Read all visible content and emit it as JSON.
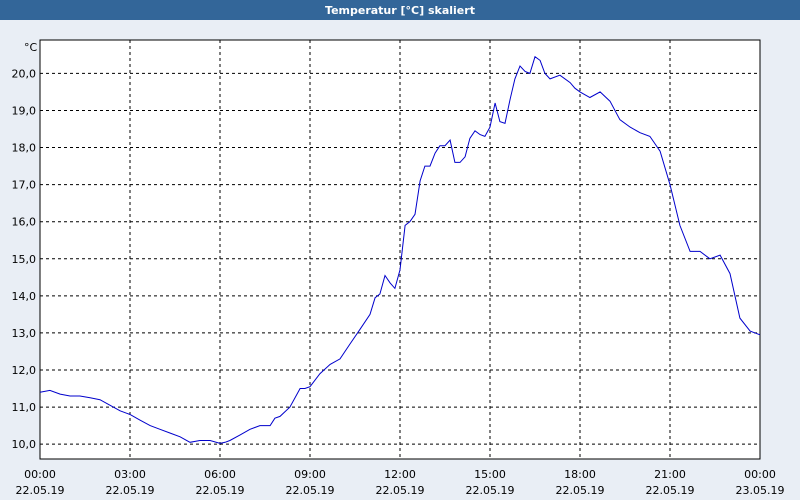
{
  "window": {
    "title": "Temperatur [°C] skaliert"
  },
  "chart_data": {
    "type": "line",
    "title": "Temperatur [°C] skaliert",
    "ylabel": "°C",
    "xlabel": "",
    "ylim": [
      9.6,
      20.9
    ],
    "xlim": [
      0,
      24
    ],
    "grid": true,
    "line_color": "#0000cc",
    "background": "#ffffff",
    "y_ticks": [
      10.0,
      11.0,
      12.0,
      13.0,
      14.0,
      15.0,
      16.0,
      17.0,
      18.0,
      19.0,
      20.0
    ],
    "y_tick_labels": [
      "10,0",
      "11,0",
      "12,0",
      "13,0",
      "14,0",
      "15,0",
      "16,0",
      "17,0",
      "18,0",
      "19,0",
      "20,0"
    ],
    "x_ticks": [
      0,
      3,
      6,
      9,
      12,
      15,
      18,
      21,
      24
    ],
    "x_tick_labels": [
      {
        "time": "00:00",
        "date": "22.05.19"
      },
      {
        "time": "03:00",
        "date": "22.05.19"
      },
      {
        "time": "06:00",
        "date": "22.05.19"
      },
      {
        "time": "09:00",
        "date": "22.05.19"
      },
      {
        "time": "12:00",
        "date": "22.05.19"
      },
      {
        "time": "15:00",
        "date": "22.05.19"
      },
      {
        "time": "18:00",
        "date": "22.05.19"
      },
      {
        "time": "21:00",
        "date": "22.05.19"
      },
      {
        "time": "00:00",
        "date": "23.05.19"
      }
    ],
    "series": [
      {
        "x": [
          0,
          0.33,
          0.67,
          1.0,
          1.33,
          1.67,
          2.0,
          2.33,
          2.67,
          3.0,
          3.33,
          3.67,
          4.0,
          4.33,
          4.67,
          5.0,
          5.33,
          5.67,
          6.0,
          6.17,
          6.33,
          6.67,
          7.0,
          7.33,
          7.67,
          7.83,
          8.0,
          8.33,
          8.67,
          8.83,
          9.0,
          9.33,
          9.67,
          10.0,
          10.33,
          10.67,
          11.0,
          11.17,
          11.33,
          11.5,
          11.67,
          11.83,
          12.0,
          12.17,
          12.33,
          12.5,
          12.67,
          12.83,
          13.0,
          13.17,
          13.33,
          13.5,
          13.67,
          13.83,
          14.0,
          14.17,
          14.33,
          14.5,
          14.67,
          14.83,
          15.0,
          15.17,
          15.33,
          15.5,
          15.67,
          15.83,
          16.0,
          16.17,
          16.33,
          16.5,
          16.67,
          16.83,
          17.0,
          17.33,
          17.67,
          17.83,
          18.0,
          18.33,
          18.67,
          19.0,
          19.33,
          19.67,
          20.0,
          20.33,
          20.67,
          21.0,
          21.33,
          21.67,
          22.0,
          22.33,
          22.67,
          23.0,
          23.33,
          23.67,
          24.0
        ],
        "y": [
          11.4,
          11.45,
          11.35,
          11.3,
          11.3,
          11.25,
          11.2,
          11.05,
          10.9,
          10.8,
          10.65,
          10.5,
          10.4,
          10.3,
          10.2,
          10.05,
          10.1,
          10.1,
          10.02,
          10.05,
          10.1,
          10.25,
          10.4,
          10.5,
          10.5,
          10.7,
          10.75,
          11.0,
          11.5,
          11.5,
          11.55,
          11.9,
          12.15,
          12.3,
          12.7,
          13.1,
          13.5,
          13.95,
          14.05,
          14.55,
          14.35,
          14.2,
          14.7,
          15.9,
          16.0,
          16.2,
          17.1,
          17.5,
          17.5,
          17.85,
          18.05,
          18.05,
          18.2,
          17.6,
          17.6,
          17.75,
          18.25,
          18.45,
          18.35,
          18.3,
          18.55,
          19.2,
          18.7,
          18.65,
          19.3,
          19.85,
          20.2,
          20.05,
          20.0,
          20.45,
          20.35,
          20.0,
          19.85,
          19.95,
          19.75,
          19.6,
          19.5,
          19.35,
          19.5,
          19.25,
          18.75,
          18.55,
          18.4,
          18.3,
          17.9,
          17.0,
          15.9,
          15.2,
          15.2,
          15.0,
          15.1,
          14.6,
          13.4,
          13.05,
          12.95
        ]
      }
    ]
  }
}
